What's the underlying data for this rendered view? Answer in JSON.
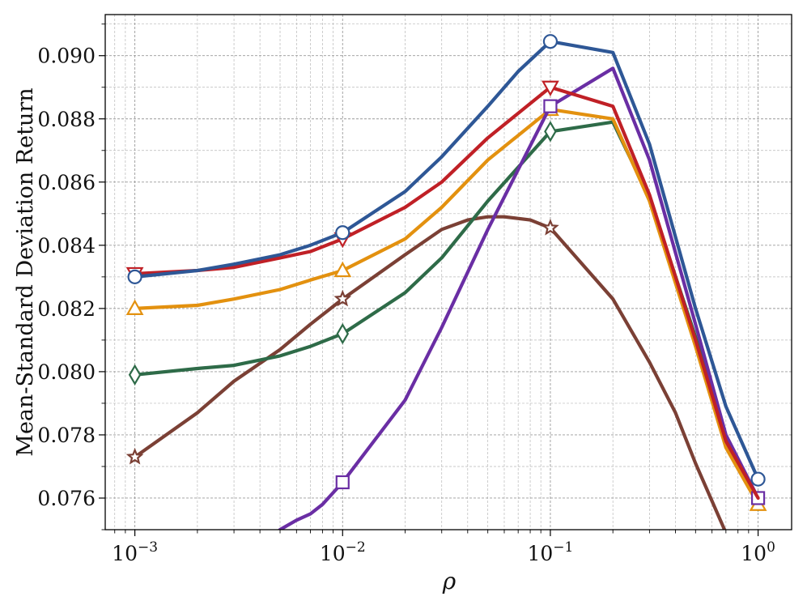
{
  "chart_data": {
    "type": "line",
    "title": "",
    "xlabel": "ρ",
    "ylabel": "Mean-Standard Deviation Return",
    "xscale": "log",
    "xlim": [
      0.00072,
      1.45
    ],
    "ylim": [
      0.075,
      0.0913
    ],
    "grid": "on (major and minor, dashed)",
    "legend": "none",
    "x_ticks": [
      {
        "value": 0.001,
        "base": "10",
        "exp": "−3"
      },
      {
        "value": 0.01,
        "base": "10",
        "exp": "−2"
      },
      {
        "value": 0.1,
        "base": "10",
        "exp": "−1"
      },
      {
        "value": 1,
        "base": "10",
        "exp": "0"
      }
    ],
    "y_ticks": [
      {
        "value": 0.076,
        "label": "0.076"
      },
      {
        "value": 0.078,
        "label": "0.078"
      },
      {
        "value": 0.08,
        "label": "0.080"
      },
      {
        "value": 0.082,
        "label": "0.082"
      },
      {
        "value": 0.084,
        "label": "0.084"
      },
      {
        "value": 0.086,
        "label": "0.086"
      },
      {
        "value": 0.088,
        "label": "0.088"
      },
      {
        "value": 0.09,
        "label": "0.090"
      }
    ],
    "series": [
      {
        "marker": "star",
        "color": "#7b4035",
        "x": [
          0.001,
          0.002,
          0.003,
          0.005,
          0.007,
          0.01,
          0.02,
          0.03,
          0.04,
          0.05,
          0.06,
          0.08,
          0.1,
          0.2,
          0.3,
          0.4,
          0.5,
          0.7
        ],
        "y": [
          0.0773,
          0.0787,
          0.0797,
          0.0807,
          0.0815,
          0.0823,
          0.0837,
          0.0845,
          0.0848,
          0.0849,
          0.0849,
          0.0848,
          0.08455,
          0.0823,
          0.0803,
          0.0787,
          0.0771,
          0.0749
        ],
        "marker_x": [
          0.001,
          0.01,
          0.1
        ]
      },
      {
        "marker": "diamond",
        "color": "#2e6b48",
        "x": [
          0.001,
          0.002,
          0.003,
          0.005,
          0.007,
          0.01,
          0.02,
          0.03,
          0.05,
          0.1,
          0.2,
          0.3,
          0.5,
          0.7,
          1
        ],
        "y": [
          0.0799,
          0.0801,
          0.0802,
          0.0805,
          0.0808,
          0.0812,
          0.0825,
          0.0836,
          0.0854,
          0.0876,
          0.0879,
          0.0855,
          0.0811,
          0.0778,
          0.0759
        ],
        "marker_x": [
          0.001,
          0.01,
          0.1,
          1
        ]
      },
      {
        "marker": "triangle-up",
        "color": "#e3910f",
        "x": [
          0.001,
          0.002,
          0.003,
          0.005,
          0.007,
          0.01,
          0.02,
          0.03,
          0.05,
          0.1,
          0.2,
          0.3,
          0.5,
          0.7,
          1
        ],
        "y": [
          0.082,
          0.0821,
          0.0823,
          0.0826,
          0.0829,
          0.0832,
          0.0842,
          0.0852,
          0.0867,
          0.0883,
          0.088,
          0.0854,
          0.0808,
          0.0776,
          0.0758
        ],
        "marker_x": [
          0.001,
          0.01,
          0.1,
          1
        ]
      },
      {
        "marker": "square",
        "color": "#6a2ea4",
        "x": [
          0.004,
          0.005,
          0.006,
          0.007,
          0.008,
          0.01,
          0.02,
          0.03,
          0.05,
          0.1,
          0.2,
          0.3,
          0.5,
          0.7,
          1
        ],
        "y": [
          0.0745,
          0.075,
          0.0753,
          0.0755,
          0.0758,
          0.0765,
          0.0791,
          0.0814,
          0.0845,
          0.0884,
          0.0896,
          0.0867,
          0.0815,
          0.078,
          0.076
        ],
        "marker_x": [
          0.01,
          0.1,
          1
        ]
      },
      {
        "marker": "triangle-down",
        "color": "#c02026",
        "x": [
          0.001,
          0.002,
          0.003,
          0.005,
          0.007,
          0.01,
          0.02,
          0.03,
          0.05,
          0.1,
          0.2,
          0.3,
          0.5,
          0.7,
          1
        ],
        "y": [
          0.0831,
          0.0832,
          0.0833,
          0.0836,
          0.0838,
          0.0842,
          0.0852,
          0.086,
          0.0874,
          0.089,
          0.0884,
          0.0856,
          0.081,
          0.0778,
          0.076
        ],
        "marker_x": [
          0.001,
          0.01,
          0.1
        ]
      },
      {
        "marker": "circle",
        "color": "#2e5796",
        "x": [
          0.001,
          0.002,
          0.003,
          0.005,
          0.007,
          0.01,
          0.02,
          0.03,
          0.05,
          0.07,
          0.1,
          0.2,
          0.3,
          0.5,
          0.7,
          1
        ],
        "y": [
          0.083,
          0.0832,
          0.0834,
          0.0837,
          0.084,
          0.0844,
          0.0857,
          0.0868,
          0.0884,
          0.0895,
          0.09045,
          0.0901,
          0.0872,
          0.082,
          0.0789,
          0.0766
        ],
        "marker_x": [
          0.001,
          0.01,
          0.1,
          1
        ]
      }
    ]
  }
}
